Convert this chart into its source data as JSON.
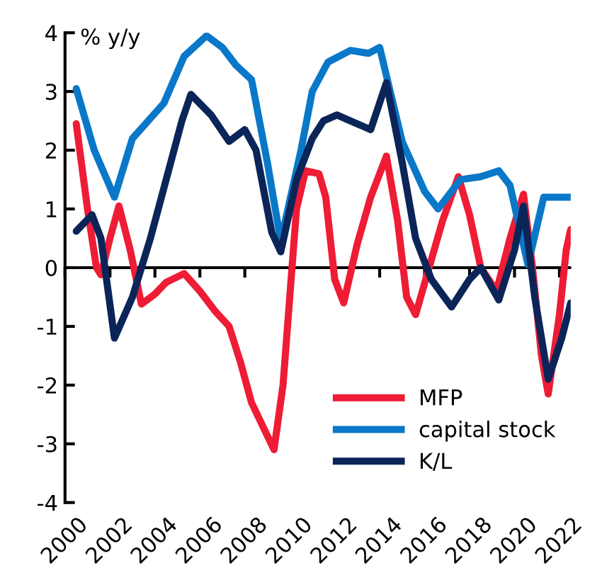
{
  "chart_data": {
    "type": "line",
    "ylabel": "% y/y",
    "xlim": [
      2000,
      2022.5
    ],
    "xticks": [
      2000,
      2002,
      2004,
      2006,
      2008,
      2010,
      2012,
      2014,
      2016,
      2018,
      2020,
      2022
    ],
    "ylim": [
      -4,
      4
    ],
    "yticks": [
      -4,
      -3,
      -2,
      -1,
      0,
      1,
      2,
      3,
      4
    ],
    "grid": false,
    "ref_lines": [
      {
        "axis": "y",
        "value": 0
      }
    ],
    "legend": "bottom right",
    "marker": "none",
    "line_style": "solid",
    "series": [
      {
        "name": "MFP",
        "color": "#ee1c35",
        "x": [
          2000.5,
          2001,
          2001.4,
          2001.6,
          2002,
          2002.4,
          2002.9,
          2003.4,
          2004,
          2004.5,
          2005.3,
          2006,
          2006.7,
          2007.3,
          2007.8,
          2008.3,
          2008.8,
          2009.3,
          2009.7,
          2010,
          2010.3,
          2010.7,
          2011.3,
          2011.6,
          2012,
          2012.4,
          2013,
          2013.6,
          2014.3,
          2014.8,
          2015.2,
          2015.6,
          2016.2,
          2016.8,
          2017.5,
          2018,
          2018.5,
          2019.2,
          2019.8,
          2020.4,
          2020.8,
          2021.2,
          2021.5,
          2022,
          2022.3,
          2022.5
        ],
        "values": [
          2.45,
          1.0,
          0.0,
          -0.12,
          0.5,
          1.05,
          0.3,
          -0.62,
          -0.45,
          -0.25,
          -0.1,
          -0.4,
          -0.75,
          -1.0,
          -1.6,
          -2.3,
          -2.7,
          -3.1,
          -2.0,
          -0.5,
          1.0,
          1.65,
          1.6,
          1.2,
          -0.2,
          -0.6,
          0.4,
          1.2,
          1.9,
          0.8,
          -0.5,
          -0.8,
          0.0,
          0.8,
          1.55,
          0.9,
          0.0,
          -0.4,
          0.5,
          1.25,
          0.0,
          -1.5,
          -2.15,
          -0.8,
          0.3,
          0.65
        ]
      },
      {
        "name": "capital stock",
        "color": "#0a78c8",
        "x": [
          2000.5,
          2001.3,
          2002.2,
          2003,
          2004.4,
          2005.3,
          2006.3,
          2007,
          2007.6,
          2008.3,
          2009,
          2009.6,
          2010.5,
          2011,
          2011.7,
          2012.7,
          2013.5,
          2014,
          2015,
          2016,
          2016.6,
          2017.6,
          2018.5,
          2019.3,
          2019.8,
          2020.6,
          2021.3,
          2022.5
        ],
        "values": [
          3.05,
          2.0,
          1.2,
          2.2,
          2.8,
          3.6,
          3.95,
          3.75,
          3.45,
          3.2,
          1.8,
          0.45,
          2.0,
          3.0,
          3.5,
          3.7,
          3.65,
          3.75,
          2.15,
          1.3,
          1.0,
          1.5,
          1.55,
          1.65,
          1.4,
          0.05,
          1.2,
          1.2
        ]
      },
      {
        "name": "K/L",
        "color": "#0b2559",
        "x": [
          2000.5,
          2001.2,
          2001.6,
          2002.2,
          2003,
          2003.8,
          2004.5,
          2005.2,
          2005.6,
          2006.5,
          2007.3,
          2008,
          2008.5,
          2009.2,
          2009.6,
          2010.3,
          2011,
          2011.5,
          2012.1,
          2013,
          2013.6,
          2014.3,
          2015,
          2015.6,
          2016.3,
          2017.2,
          2018,
          2018.5,
          2019.3,
          2020,
          2020.4,
          2020.9,
          2021.5,
          2022.1,
          2022.5
        ],
        "values": [
          0.62,
          0.9,
          0.5,
          -1.2,
          -0.5,
          0.5,
          1.5,
          2.5,
          2.95,
          2.6,
          2.15,
          2.35,
          2.0,
          0.6,
          0.27,
          1.5,
          2.2,
          2.5,
          2.6,
          2.45,
          2.35,
          3.15,
          1.8,
          0.5,
          -0.2,
          -0.67,
          -0.2,
          0.0,
          -0.55,
          0.3,
          1.05,
          -0.5,
          -1.9,
          -1.2,
          -0.6
        ]
      }
    ]
  }
}
